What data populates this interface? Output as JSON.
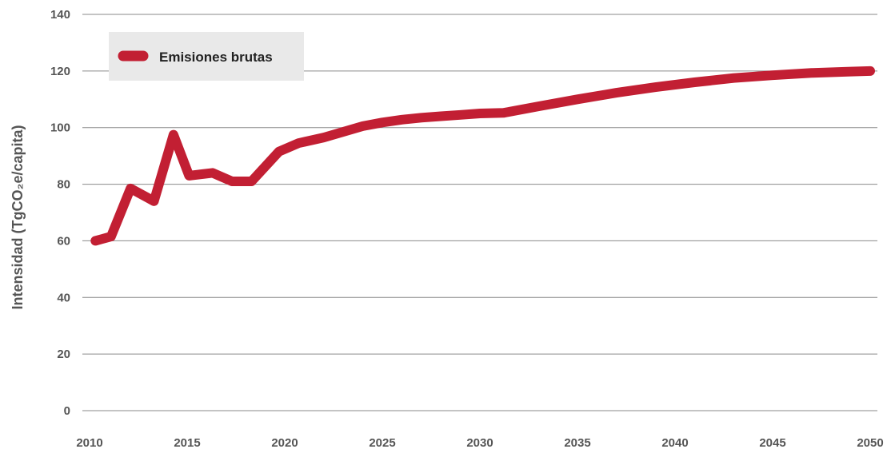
{
  "chart_data": {
    "type": "line",
    "title": "",
    "xlabel": "",
    "ylabel": "Intensidad (TgCO₂e/capita)",
    "xlim": [
      2010,
      2050
    ],
    "ylim": [
      0,
      140
    ],
    "x_ticks": [
      "2010",
      "2015",
      "2020",
      "2025",
      "2030",
      "2035",
      "2040",
      "2045",
      "2050"
    ],
    "y_ticks": [
      "0",
      "20",
      "40",
      "60",
      "80",
      "100",
      "120",
      "140"
    ],
    "grid": true,
    "legend_position": "top-left",
    "series": [
      {
        "name": "Emisiones brutas",
        "color": "#c21f33",
        "x": [
          2010.3,
          2011.1,
          2012.1,
          2013.3,
          2014.3,
          2015.1,
          2016.3,
          2017.3,
          2018.3,
          2019.7,
          2020.7,
          2022,
          2023,
          2024,
          2025,
          2026,
          2027,
          2028,
          2029,
          2030,
          2031.2,
          2033,
          2035,
          2037,
          2039,
          2041,
          2043,
          2045,
          2047,
          2049,
          2050
        ],
        "y": [
          60,
          61.5,
          78.5,
          74,
          97.5,
          83,
          84,
          81,
          81,
          91.5,
          94.5,
          96.5,
          98.5,
          100.5,
          101.8,
          102.8,
          103.5,
          104,
          104.5,
          105,
          105.2,
          107.5,
          110,
          112.3,
          114.3,
          116,
          117.5,
          118.5,
          119.3,
          119.8,
          120
        ]
      }
    ]
  }
}
